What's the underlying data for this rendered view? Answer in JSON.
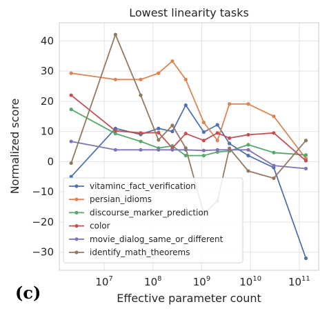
{
  "panel_label": "(c)",
  "chart_data": {
    "type": "line",
    "title": "Lowest linearity tasks",
    "xlabel": "Effective parameter count",
    "ylabel": "Normalized score",
    "xscale": "log",
    "xlim": [
      1200000.0,
      250000000000.0
    ],
    "ylim": [
      -36,
      46
    ],
    "xticks": [
      {
        "value": 10000000.0,
        "base": "10",
        "exp": "7"
      },
      {
        "value": 100000000.0,
        "base": "10",
        "exp": "8"
      },
      {
        "value": 1000000000.0,
        "base": "10",
        "exp": "9"
      },
      {
        "value": 10000000000.0,
        "base": "10",
        "exp": "10"
      },
      {
        "value": 100000000000.0,
        "base": "10",
        "exp": "11"
      }
    ],
    "yticks": [
      {
        "value": 40,
        "label": "40"
      },
      {
        "value": 30,
        "label": "30"
      },
      {
        "value": 20,
        "label": "20"
      },
      {
        "value": 10,
        "label": "10"
      },
      {
        "value": 0,
        "label": "0"
      },
      {
        "value": -10,
        "label": "−10"
      },
      {
        "value": -20,
        "label": "−20"
      },
      {
        "value": -30,
        "label": "−30"
      }
    ],
    "grid": true,
    "legend_position": "bottom-left",
    "x": [
      2100000.0,
      17000000.0,
      56000000.0,
      130000000.0,
      250000000.0,
      470000000.0,
      1100000000.0,
      2100000000.0,
      3700000000.0,
      9000000000.0,
      30000000000.0,
      137000000000.0
    ],
    "series": [
      {
        "name": "vitaminc_fact_verification",
        "color": "#4c72b0",
        "values": [
          -5,
          11,
          9,
          11,
          10,
          18.7,
          9.8,
          12.2,
          6,
          2,
          -2,
          -32
        ]
      },
      {
        "name": "persian_idioms",
        "color": "#dd8452",
        "values": [
          29.3,
          27.2,
          27.2,
          29.3,
          33.3,
          27.2,
          13,
          7,
          19.1,
          19.1,
          15,
          1
        ]
      },
      {
        "name": "discourse_marker_prediction",
        "color": "#55a868",
        "values": [
          17.3,
          9.3,
          6.7,
          4.5,
          5.2,
          2,
          2,
          3.2,
          3.5,
          5.6,
          3,
          2.2
        ]
      },
      {
        "name": "color",
        "color": "#c44e52",
        "values": [
          22,
          10.2,
          9.5,
          9.6,
          4.5,
          9.3,
          7,
          9.5,
          7.8,
          8.9,
          9.5,
          0.3
        ]
      },
      {
        "name": "movie_dialog_same_or_different",
        "color": "#8172b3",
        "values": [
          6.7,
          3.9,
          3.9,
          3.9,
          3.9,
          3.9,
          3.7,
          3.9,
          3.9,
          3.9,
          -1.3,
          -2.3
        ]
      },
      {
        "name": "identify_math_theorems",
        "color": "#937860",
        "values": [
          -0.5,
          42.1,
          22,
          7.2,
          12,
          4.5,
          -17.3,
          -13,
          4.4,
          -3.1,
          -5.5,
          7
        ]
      }
    ]
  }
}
